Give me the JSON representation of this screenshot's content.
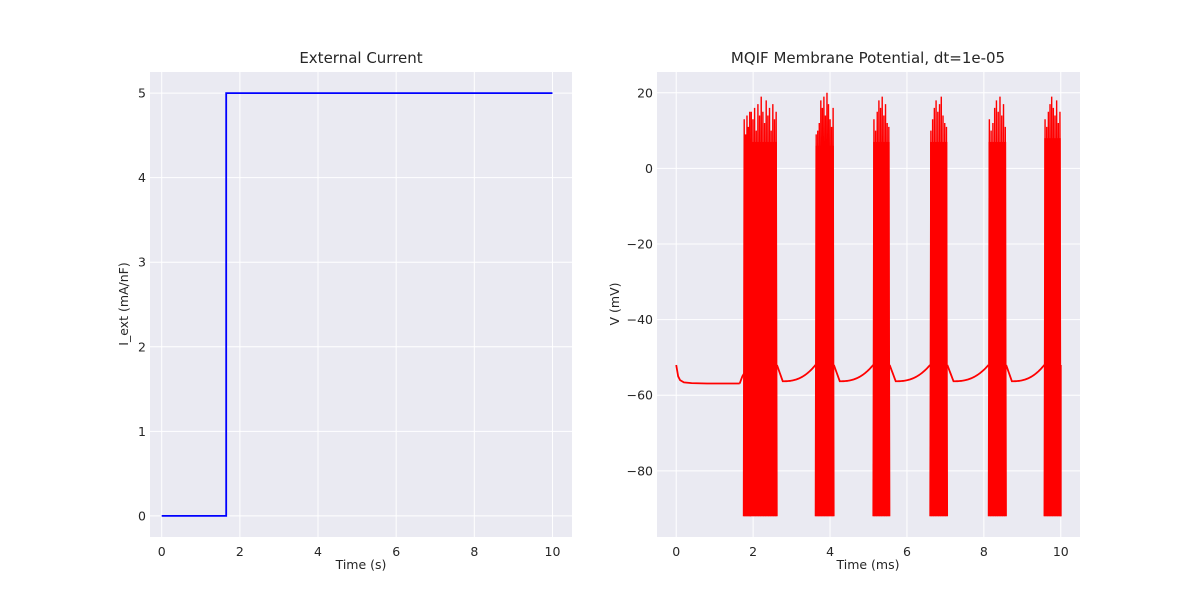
{
  "chart_data": [
    {
      "type": "line",
      "title": "External Current",
      "xlabel": "Time (s)",
      "ylabel": "I_ext (mA/nF)",
      "xlim": [
        -0.3,
        10.5
      ],
      "ylim": [
        -0.25,
        5.25
      ],
      "xticks": [
        0,
        2,
        4,
        6,
        8,
        10
      ],
      "yticks": [
        0,
        1,
        2,
        3,
        4,
        5
      ],
      "grid": true,
      "series": [
        {
          "color": "#0000ff",
          "x": [
            0,
            1.65,
            1.65,
            10
          ],
          "y": [
            0,
            0,
            5,
            5
          ]
        }
      ]
    },
    {
      "type": "line",
      "title": "MQIF Membrane Potential, dt=1e-05",
      "xlabel": "Time (ms)",
      "ylabel": "V (mV)",
      "xlim": [
        -0.5,
        10.5
      ],
      "ylim": [
        -97.5,
        25.5
      ],
      "xticks": [
        0,
        2,
        4,
        6,
        8,
        10
      ],
      "yticks": [
        -80,
        -60,
        -40,
        -20,
        0,
        20
      ],
      "grid": true,
      "series": [
        {
          "color": "#ff0000",
          "baseline": {
            "x": [
              0,
              0.05,
              0.1,
              0.2,
              0.4,
              0.8,
              1.2,
              1.65
            ],
            "y": [
              -52,
              -55,
              -56,
              -56.6,
              -56.8,
              -56.9,
              -56.9,
              -56.9
            ]
          },
          "bursts": [
            {
              "start": 1.75,
              "end": 1.93,
              "peaks": [
                13,
                9,
                14,
                11,
                15
              ]
            },
            {
              "start": 1.93,
              "end": 2.62,
              "peaks": [
                15,
                13,
                16,
                10,
                17,
                14,
                19,
                15,
                12,
                18,
                14,
                16,
                10,
                17,
                13,
                15
              ]
            },
            {
              "start": 3.62,
              "end": 4.1,
              "peaks": [
                9,
                10,
                12,
                18,
                16,
                19,
                14,
                20,
                17,
                13,
                11,
                16
              ]
            },
            {
              "start": 5.12,
              "end": 5.55,
              "peaks": [
                13,
                10,
                15,
                18,
                16,
                19,
                14,
                17,
                12,
                11
              ]
            },
            {
              "start": 6.6,
              "end": 7.05,
              "peaks": [
                10,
                13,
                16,
                18,
                15,
                17,
                19,
                14,
                12,
                11
              ]
            },
            {
              "start": 8.12,
              "end": 8.58,
              "peaks": [
                13,
                10,
                12,
                16,
                18,
                15,
                19,
                14,
                17,
                11
              ]
            },
            {
              "start": 9.57,
              "end": 10.0,
              "peaks": [
                13,
                11,
                15,
                17,
                19,
                16,
                14,
                18,
                12,
                15
              ]
            }
          ],
          "spike_trough": -92,
          "recovery": [
            {
              "from": 2.62,
              "to": 3.62,
              "end": -52
            },
            {
              "from": 4.1,
              "to": 5.12,
              "end": -52
            },
            {
              "from": 5.55,
              "to": 6.6,
              "end": -52
            },
            {
              "from": 7.05,
              "to": 8.12,
              "end": -52
            },
            {
              "from": 8.58,
              "to": 9.57,
              "end": -52
            }
          ]
        }
      ]
    }
  ]
}
